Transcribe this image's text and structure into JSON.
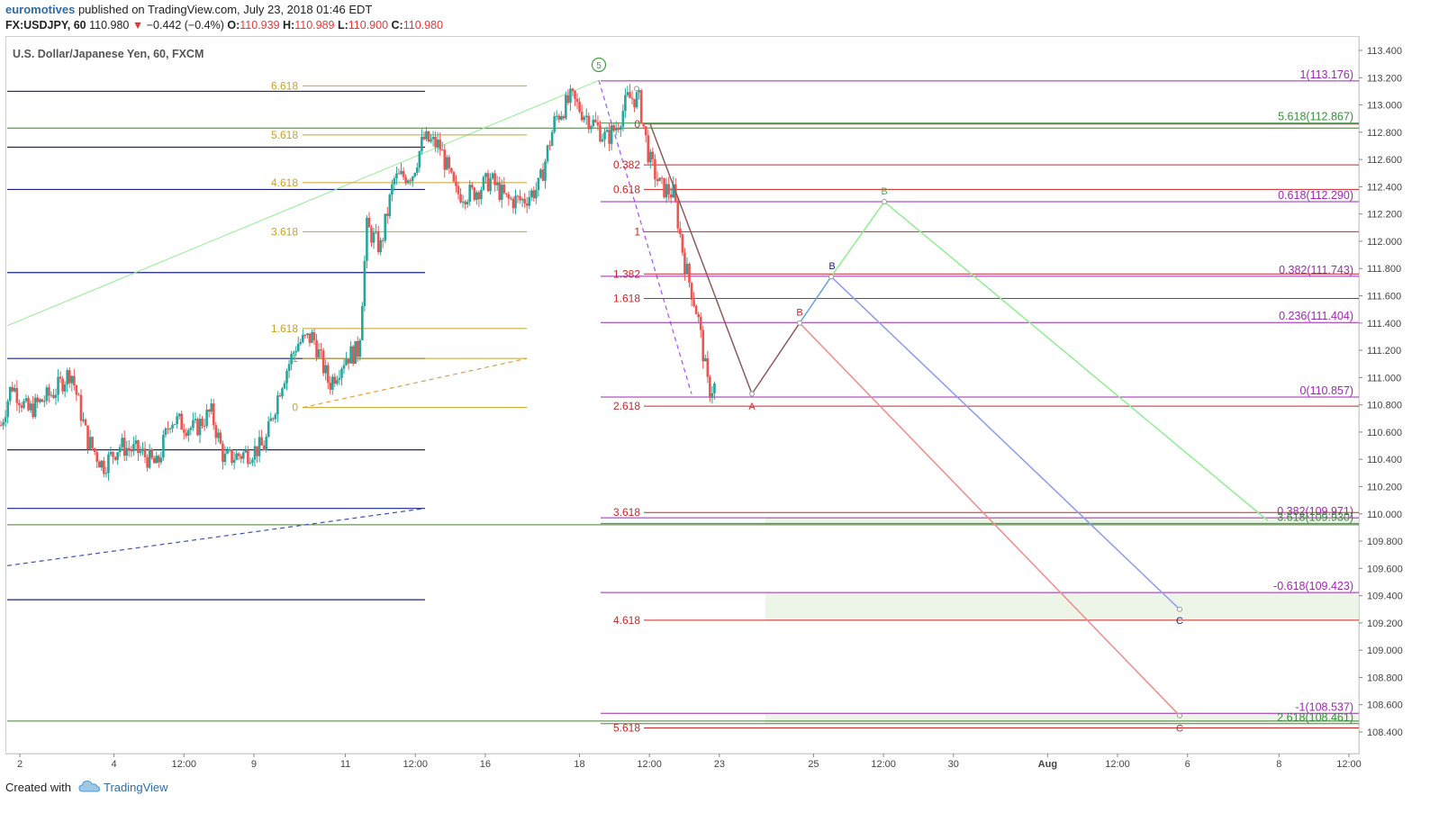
{
  "header": {
    "author": "euromotives",
    "published_text": "published on TradingView.com, July 23, 2018 01:46 EDT",
    "symbol": "FX:USDJPY, 60",
    "last": "110.980",
    "change_arrow": "▼",
    "change": "−0.442 (−0.4%)",
    "o_label": "O:",
    "o": "110.939",
    "h_label": "H:",
    "h": "110.989",
    "l_label": "L:",
    "l": "110.900",
    "c_label": "C:",
    "c": "110.980"
  },
  "footer": {
    "created_with": "Created with",
    "brand": "TradingView",
    "logo_icon": "tradingview-cloud-icon"
  },
  "chart_data": {
    "type": "candlestick",
    "title": "U.S. Dollar/Japanese Yen, 60, FXCM",
    "ylim": [
      108.3,
      113.5
    ],
    "xlim": [
      0,
      50
    ],
    "y_tick_labels": [
      "113.400",
      "113.200",
      "113.000",
      "112.800",
      "112.600",
      "112.400",
      "112.200",
      "112.000",
      "111.800",
      "111.600",
      "111.400",
      "111.200",
      "111.000",
      "110.800",
      "110.600",
      "110.400",
      "110.200",
      "110.000",
      "109.800",
      "109.600",
      "109.400",
      "109.200",
      "109.000",
      "108.800",
      "108.600",
      "108.400"
    ],
    "x_ticks": [
      {
        "x": 0.5,
        "label": "2"
      },
      {
        "x": 4,
        "label": "4"
      },
      {
        "x": 6.6,
        "label": "12:00"
      },
      {
        "x": 9.2,
        "label": "9"
      },
      {
        "x": 12.6,
        "label": "11"
      },
      {
        "x": 15.2,
        "label": "12:00"
      },
      {
        "x": 17.8,
        "label": "16"
      },
      {
        "x": 21.3,
        "label": "18"
      },
      {
        "x": 23.9,
        "label": "12:00"
      },
      {
        "x": 26.5,
        "label": "23"
      },
      {
        "x": 30,
        "label": "25"
      },
      {
        "x": 32.6,
        "label": "12:00"
      },
      {
        "x": 35.2,
        "label": "30"
      },
      {
        "x": 38.7,
        "label": "Aug"
      },
      {
        "x": 41.3,
        "label": "12:00"
      },
      {
        "x": 43.9,
        "label": "6"
      },
      {
        "x": 47.3,
        "label": "8"
      },
      {
        "x": 49.9,
        "label": "12:00"
      }
    ],
    "price_path": [
      [
        0,
        110.65
      ],
      [
        0.4,
        110.95
      ],
      [
        1,
        110.75
      ],
      [
        2,
        110.9
      ],
      [
        2.6,
        111.05
      ],
      [
        3.2,
        110.55
      ],
      [
        3.8,
        110.35
      ],
      [
        4.4,
        110.5
      ],
      [
        5.2,
        110.45
      ],
      [
        5.8,
        110.35
      ],
      [
        6.3,
        110.7
      ],
      [
        7.2,
        110.62
      ],
      [
        7.8,
        110.75
      ],
      [
        8.3,
        110.4
      ],
      [
        9.2,
        110.45
      ],
      [
        9.8,
        110.5
      ],
      [
        10.4,
        110.95
      ],
      [
        11,
        111.25
      ],
      [
        11.6,
        111.3
      ],
      [
        12.2,
        110.95
      ],
      [
        12.8,
        111.15
      ],
      [
        13.3,
        111.2
      ],
      [
        13.6,
        112.1
      ],
      [
        14.1,
        111.95
      ],
      [
        14.6,
        112.45
      ],
      [
        15.3,
        112.5
      ],
      [
        15.7,
        112.75
      ],
      [
        16.3,
        112.7
      ],
      [
        16.9,
        112.35
      ],
      [
        17.5,
        112.35
      ],
      [
        18.2,
        112.45
      ],
      [
        18.8,
        112.3
      ],
      [
        19.4,
        112.3
      ],
      [
        20,
        112.4
      ],
      [
        20.6,
        112.9
      ],
      [
        21.2,
        113.05
      ],
      [
        21.6,
        112.95
      ],
      [
        22.1,
        112.85
      ],
      [
        22.5,
        112.75
      ],
      [
        22.9,
        112.85
      ],
      [
        23.3,
        113.05
      ],
      [
        23.7,
        113.05
      ],
      [
        24.1,
        112.6
      ],
      [
        24.5,
        112.4
      ],
      [
        25,
        112.35
      ],
      [
        25.4,
        111.85
      ],
      [
        25.9,
        111.45
      ],
      [
        26.3,
        110.9
      ],
      [
        26.6,
        110.95
      ]
    ],
    "annotations": {
      "wave_circle": {
        "x": 22,
        "y": 113.32,
        "label": "5"
      },
      "left_fib_levels": [
        {
          "label": "6.618",
          "y": 113.14
        },
        {
          "label": "5.618",
          "y": 112.78
        },
        {
          "label": "4.618",
          "y": 112.43
        },
        {
          "label": "3.618",
          "y": 112.07
        },
        {
          "label": "1.618",
          "y": 111.36
        },
        {
          "label": "1",
          "y": 111.14
        },
        {
          "label": "0",
          "y": 110.78
        }
      ],
      "red_fib_levels": [
        {
          "label": "0",
          "y": 112.86
        },
        {
          "label": "0.382",
          "y": 112.56
        },
        {
          "label": "0.618",
          "y": 112.38
        },
        {
          "label": "1",
          "y": 112.07
        },
        {
          "label": "1.382",
          "y": 111.76
        },
        {
          "label": "1.618",
          "y": 111.58
        },
        {
          "label": "2.618",
          "y": 110.79
        },
        {
          "label": "3.618",
          "y": 110.01
        },
        {
          "label": "4.618",
          "y": 109.22
        },
        {
          "label": "5.618",
          "y": 108.43
        }
      ],
      "right_levels": [
        {
          "label": "1(113.176)",
          "y": 113.176,
          "color": "#9c27b0"
        },
        {
          "label": "5.618(112.867)",
          "y": 112.867,
          "color": "#388e3c"
        },
        {
          "label": "0.618(112.290)",
          "y": 112.29,
          "color": "#9c27b0"
        },
        {
          "label": "0.382(111.743)",
          "y": 111.743,
          "color": "#9c27b0"
        },
        {
          "label": "0.236(111.404)",
          "y": 111.404,
          "color": "#9c27b0"
        },
        {
          "label": "0(110.857)",
          "y": 110.857,
          "color": "#9c27b0"
        },
        {
          "label": "0.382(109.971)",
          "y": 109.971,
          "color": "#9c27b0"
        },
        {
          "label": "3.618(109.930)",
          "y": 109.93,
          "color": "#388e3c"
        },
        {
          "label": "-0.618(109.423)",
          "y": 109.423,
          "color": "#9c27b0"
        },
        {
          "label": "-1(108.537)",
          "y": 108.537,
          "color": "#9c27b0"
        },
        {
          "label": "2.618(108.461)",
          "y": 108.461,
          "color": "#388e3c"
        }
      ],
      "wave_labels": [
        {
          "label": "A",
          "x": 27.9,
          "y": 110.88,
          "color": "#c62828"
        },
        {
          "label": "B",
          "x": 29.6,
          "y": 111.4,
          "color": "#c62828"
        },
        {
          "label": "B",
          "x": 30.8,
          "y": 111.74,
          "color": "#1a237e"
        },
        {
          "label": "B",
          "x": 32.6,
          "y": 112.29,
          "color": "#4caf50"
        },
        {
          "label": "C",
          "x": 43.6,
          "y": 109.3,
          "color": "#1a237e"
        },
        {
          "label": "C",
          "x": 43.6,
          "y": 108.5,
          "color": "#c62828"
        }
      ]
    },
    "colors": {
      "up_candle": "#26a69a",
      "down_candle": "#ef5350",
      "blue_level": "#1a237e",
      "green_level": "#4a7c39",
      "gold_level": "#c9a227",
      "red_level": "#c62828",
      "purple_level": "#9c27b0"
    }
  }
}
